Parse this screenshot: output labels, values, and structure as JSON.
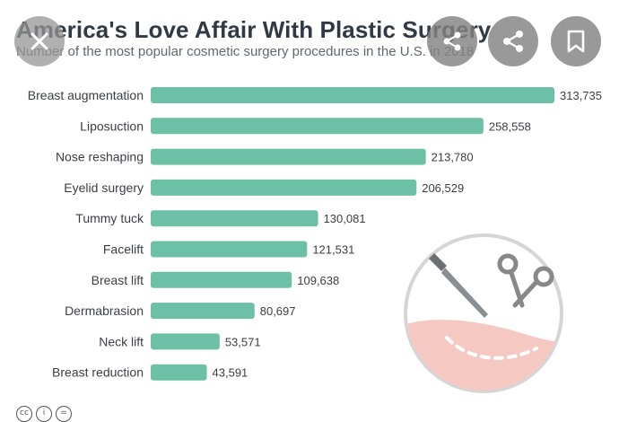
{
  "chart_data": {
    "type": "bar",
    "orientation": "horizontal",
    "title": "America's Love Affair With Plastic Surgery",
    "subtitle": "Number of the most popular cosmetic surgery procedures in the U.S. in 2018",
    "categories": [
      "Breast augmentation",
      "Liposuction",
      "Nose reshaping",
      "Eyelid surgery",
      "Tummy tuck",
      "Facelift",
      "Breast lift",
      "Dermabrasion",
      "Neck lift",
      "Breast reduction"
    ],
    "values": [
      313735,
      258558,
      213780,
      206529,
      130081,
      121531,
      109638,
      80697,
      53571,
      43591
    ],
    "value_labels": [
      "313,735",
      "258,558",
      "213,780",
      "206,529",
      "130,081",
      "121,531",
      "109,638",
      "80,697",
      "53,571",
      "43,591"
    ],
    "xlim": [
      0,
      313735
    ],
    "grid": false,
    "bar_color": "#6cc0a6"
  },
  "ui": {
    "close_icon": "close-icon",
    "share_icon": "share-icon",
    "bookmark_icon": "bookmark-icon",
    "overlay_button_color": "#828282"
  },
  "footer": {
    "license_icons": [
      "cc-icon",
      "attribution-icon",
      "noderivs-icon"
    ]
  }
}
